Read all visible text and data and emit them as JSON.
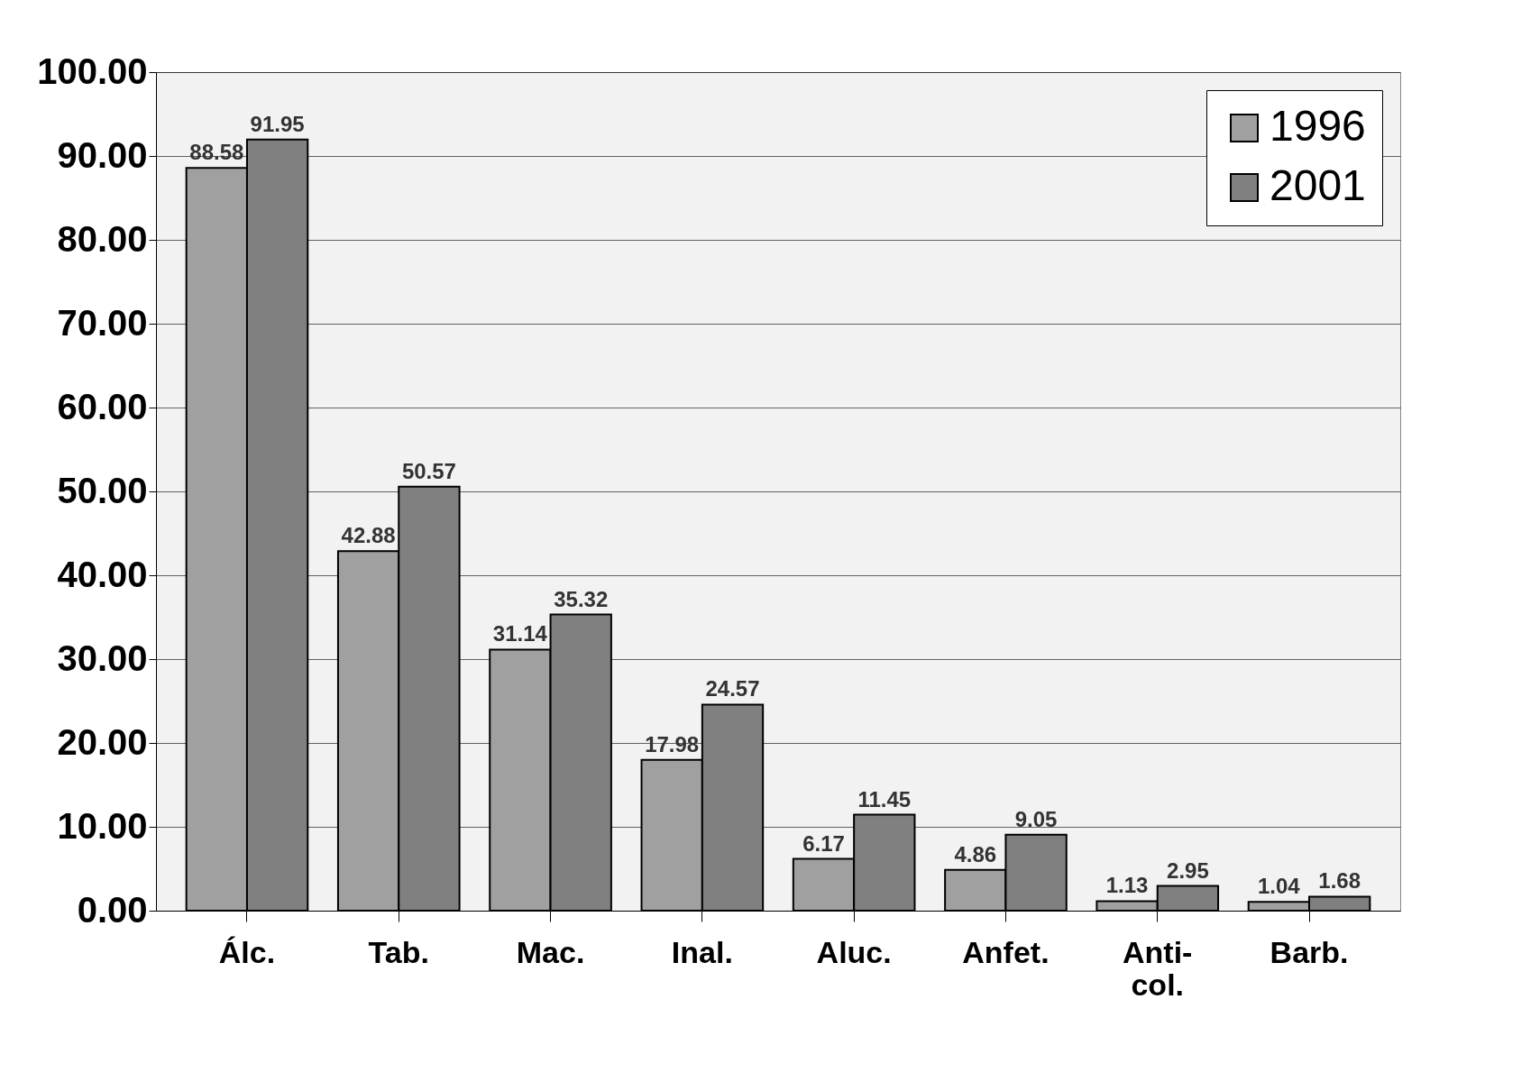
{
  "chart_data": {
    "type": "bar",
    "categories": [
      "Álc.",
      "Tab.",
      "Mac.",
      "Inal.",
      "Aluc.",
      "Anfet.",
      "Anti-col.",
      "Barb."
    ],
    "series": [
      {
        "name": "1996",
        "color": "#a0a0a0",
        "values": [
          88.58,
          42.88,
          31.14,
          17.98,
          6.17,
          4.86,
          1.13,
          1.04
        ]
      },
      {
        "name": "2001",
        "color": "#808080",
        "values": [
          91.95,
          50.57,
          35.32,
          24.57,
          11.45,
          9.05,
          2.95,
          1.68
        ]
      }
    ],
    "ylim": [
      0,
      100
    ],
    "yticks": [
      {
        "value": 0,
        "label": "0.00"
      },
      {
        "value": 10,
        "label": "10.00"
      },
      {
        "value": 20,
        "label": "20.00"
      },
      {
        "value": 30,
        "label": "30.00"
      },
      {
        "value": 40,
        "label": "40.00"
      },
      {
        "value": 50,
        "label": "50.00"
      },
      {
        "value": 60,
        "label": "60.00"
      },
      {
        "value": 70,
        "label": "70.00"
      },
      {
        "value": 80,
        "label": "80.00"
      },
      {
        "value": 90,
        "label": "90.00"
      },
      {
        "value": 100,
        "label": "100.00"
      }
    ],
    "grid": "y",
    "legend": "top right",
    "data_labels": true
  }
}
